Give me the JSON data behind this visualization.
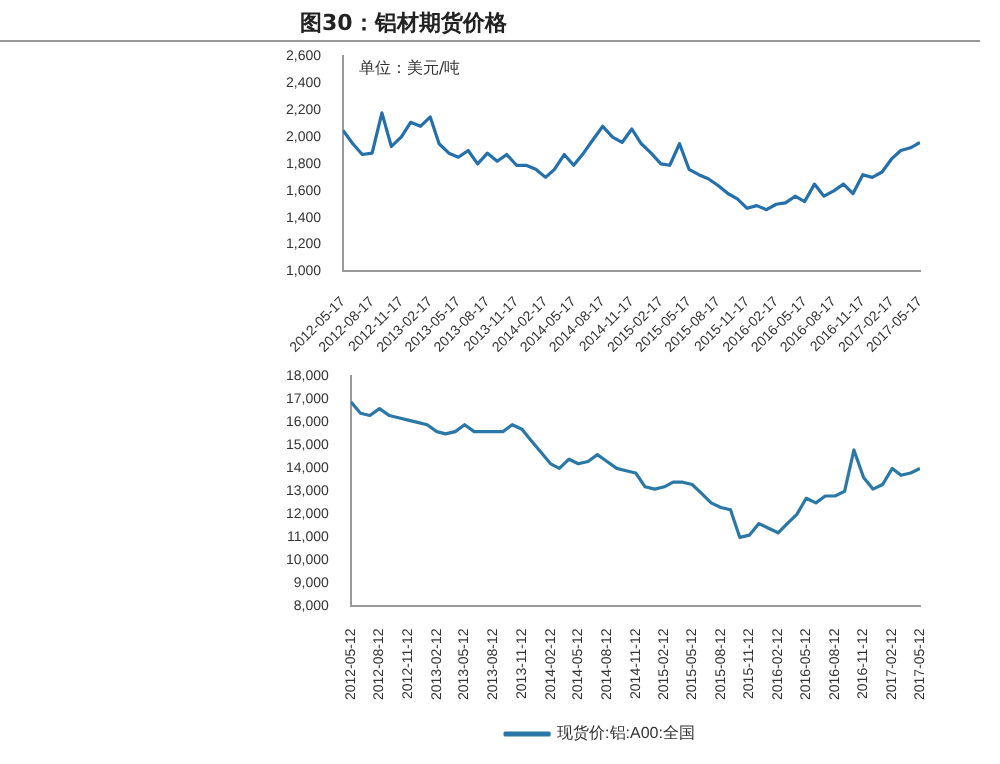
{
  "chart_data": [
    {
      "type": "line",
      "title": "图30：铝材期货价格",
      "annotations": [
        "单位：美元/吨"
      ],
      "grid": false,
      "legend": false,
      "marker": "none",
      "xlim": [
        "2012-05-17",
        "2017-05-17"
      ],
      "xticks": [
        "2012-05-17",
        "2012-08-17",
        "2012-11-17",
        "2013-02-17",
        "2013-05-17",
        "2013-08-17",
        "2013-11-17",
        "2014-02-17",
        "2014-05-17",
        "2014-08-17",
        "2014-11-17",
        "2015-02-17",
        "2015-05-17",
        "2015-08-17",
        "2015-11-17",
        "2016-02-17",
        "2016-05-17",
        "2016-08-17",
        "2016-11-17",
        "2017-02-17",
        "2017-05-17"
      ],
      "ylim": [
        1000,
        2600
      ],
      "yticks": [
        {
          "value": 1000,
          "label": "1,000"
        },
        {
          "value": 1200,
          "label": "1,200"
        },
        {
          "value": 1400,
          "label": "1,400"
        },
        {
          "value": 1600,
          "label": "1,600"
        },
        {
          "value": 1800,
          "label": "1,800"
        },
        {
          "value": 2000,
          "label": "2,000"
        },
        {
          "value": 2200,
          "label": "2,200"
        },
        {
          "value": 2400,
          "label": "2,400"
        },
        {
          "value": 2600,
          "label": "2,600"
        }
      ],
      "x": [
        "2012-05-17",
        "2012-06-17",
        "2012-07-17",
        "2012-08-17",
        "2012-09-17",
        "2012-10-17",
        "2012-11-17",
        "2012-12-17",
        "2013-01-17",
        "2013-02-17",
        "2013-03-17",
        "2013-04-17",
        "2013-05-17",
        "2013-06-17",
        "2013-07-17",
        "2013-08-17",
        "2013-09-17",
        "2013-10-17",
        "2013-11-17",
        "2013-12-17",
        "2014-01-17",
        "2014-02-17",
        "2014-03-17",
        "2014-04-17",
        "2014-05-17",
        "2014-06-17",
        "2014-07-17",
        "2014-08-17",
        "2014-09-17",
        "2014-10-17",
        "2014-11-17",
        "2014-12-17",
        "2015-01-17",
        "2015-02-17",
        "2015-03-17",
        "2015-04-17",
        "2015-05-17",
        "2015-06-17",
        "2015-07-17",
        "2015-08-17",
        "2015-09-17",
        "2015-10-17",
        "2015-11-17",
        "2015-12-17",
        "2016-01-17",
        "2016-02-17",
        "2016-03-17",
        "2016-04-17",
        "2016-05-17",
        "2016-06-17",
        "2016-07-17",
        "2016-08-17",
        "2016-09-17",
        "2016-10-17",
        "2016-11-17",
        "2016-12-17",
        "2017-01-17",
        "2017-02-17",
        "2017-03-17",
        "2017-04-17",
        "2017-05-17"
      ],
      "series": [
        {
          "color": "#2370ad",
          "values": [
            2050,
            1950,
            1870,
            1880,
            2180,
            1930,
            2000,
            2110,
            2080,
            2150,
            1950,
            1880,
            1850,
            1900,
            1800,
            1880,
            1820,
            1870,
            1790,
            1790,
            1760,
            1700,
            1760,
            1870,
            1790,
            1880,
            1980,
            2080,
            2000,
            1960,
            2060,
            1950,
            1880,
            1800,
            1790,
            1950,
            1760,
            1720,
            1690,
            1640,
            1580,
            1540,
            1470,
            1490,
            1460,
            1500,
            1510,
            1560,
            1520,
            1650,
            1560,
            1600,
            1650,
            1580,
            1720,
            1700,
            1740,
            1840,
            1900,
            1920,
            1960
          ]
        }
      ]
    },
    {
      "type": "line",
      "grid": false,
      "legend": "bottom",
      "marker": "none",
      "xlim": [
        "2012-05-12",
        "2017-05-12"
      ],
      "xticks": [
        "2012-05-12",
        "2012-08-12",
        "2012-11-12",
        "2013-02-12",
        "2013-05-12",
        "2013-08-12",
        "2013-11-12",
        "2014-02-12",
        "2014-05-12",
        "2014-08-12",
        "2014-11-12",
        "2015-02-12",
        "2015-05-12",
        "2015-08-12",
        "2015-11-12",
        "2016-02-12",
        "2016-05-12",
        "2016-08-12",
        "2016-11-12",
        "2017-02-12",
        "2017-05-12"
      ],
      "ylim": [
        8000,
        18000
      ],
      "yticks": [
        {
          "value": 8000,
          "label": "8,000"
        },
        {
          "value": 9000,
          "label": "9,000"
        },
        {
          "value": 10000,
          "label": "10,000"
        },
        {
          "value": 11000,
          "label": "11,000"
        },
        {
          "value": 12000,
          "label": "12,000"
        },
        {
          "value": 13000,
          "label": "13,000"
        },
        {
          "value": 14000,
          "label": "14,000"
        },
        {
          "value": 15000,
          "label": "15,000"
        },
        {
          "value": 16000,
          "label": "16,000"
        },
        {
          "value": 17000,
          "label": "17,000"
        },
        {
          "value": 18000,
          "label": "18,000"
        }
      ],
      "x": [
        "2012-05-12",
        "2012-06-12",
        "2012-07-12",
        "2012-08-12",
        "2012-09-12",
        "2012-10-12",
        "2012-11-12",
        "2012-12-12",
        "2013-01-12",
        "2013-02-12",
        "2013-03-12",
        "2013-04-12",
        "2013-05-12",
        "2013-06-12",
        "2013-07-12",
        "2013-08-12",
        "2013-09-12",
        "2013-10-12",
        "2013-11-12",
        "2013-12-12",
        "2014-01-12",
        "2014-02-12",
        "2014-03-12",
        "2014-04-12",
        "2014-05-12",
        "2014-06-12",
        "2014-07-12",
        "2014-08-12",
        "2014-09-12",
        "2014-10-12",
        "2014-11-12",
        "2014-12-12",
        "2015-01-12",
        "2015-02-12",
        "2015-03-12",
        "2015-04-12",
        "2015-05-12",
        "2015-06-12",
        "2015-07-12",
        "2015-08-12",
        "2015-09-12",
        "2015-10-12",
        "2015-11-12",
        "2015-12-12",
        "2016-01-12",
        "2016-02-12",
        "2016-03-12",
        "2016-04-12",
        "2016-05-12",
        "2016-06-12",
        "2016-07-12",
        "2016-08-12",
        "2016-09-12",
        "2016-10-12",
        "2016-11-12",
        "2016-12-12",
        "2017-01-12",
        "2017-02-12",
        "2017-03-12",
        "2017-04-12",
        "2017-05-12"
      ],
      "series": [
        {
          "name": "现货价:铝:A00:全国",
          "color": "#2a78a8",
          "values": [
            16900,
            16400,
            16300,
            16600,
            16300,
            16200,
            16100,
            16000,
            15900,
            15600,
            15500,
            15600,
            15900,
            15600,
            15600,
            15600,
            15600,
            15900,
            15700,
            15200,
            14700,
            14200,
            14000,
            14400,
            14200,
            14300,
            14600,
            14300,
            14000,
            13900,
            13800,
            13200,
            13100,
            13200,
            13400,
            13400,
            13300,
            12900,
            12500,
            12300,
            12200,
            11000,
            11100,
            11600,
            11400,
            11200,
            11600,
            12000,
            12700,
            12500,
            12800,
            12800,
            13000,
            14800,
            13600,
            13100,
            13300,
            14000,
            13700,
            13800,
            14000
          ]
        }
      ]
    }
  ]
}
